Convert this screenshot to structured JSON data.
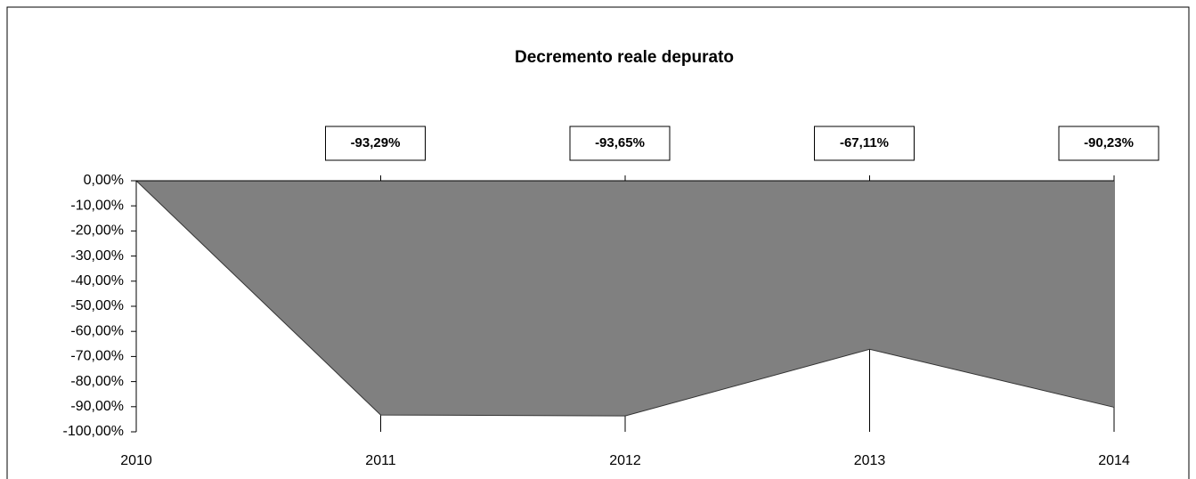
{
  "chart_data": {
    "type": "area",
    "title": "Decremento reale depurato",
    "categories": [
      "2010",
      "2011",
      "2012",
      "2013",
      "2014"
    ],
    "values": [
      0,
      -93.29,
      -93.65,
      -67.11,
      -90.23
    ],
    "value_labels": [
      null,
      "-93,29%",
      "-93,65%",
      "-67,11%",
      "-90,23%"
    ],
    "color": "#808080",
    "ylim": [
      -100,
      0
    ],
    "yticks": [
      {
        "value": 0,
        "label": "0,00%"
      },
      {
        "value": -10,
        "label": "-10,00%"
      },
      {
        "value": -20,
        "label": "-20,00%"
      },
      {
        "value": -30,
        "label": "-30,00%"
      },
      {
        "value": -40,
        "label": "-40,00%"
      },
      {
        "value": -50,
        "label": "-50,00%"
      },
      {
        "value": -60,
        "label": "-60,00%"
      },
      {
        "value": -70,
        "label": "-70,00%"
      },
      {
        "value": -80,
        "label": "-80,00%"
      },
      {
        "value": -90,
        "label": "-90,00%"
      },
      {
        "value": -100,
        "label": "-100,00%"
      }
    ]
  }
}
